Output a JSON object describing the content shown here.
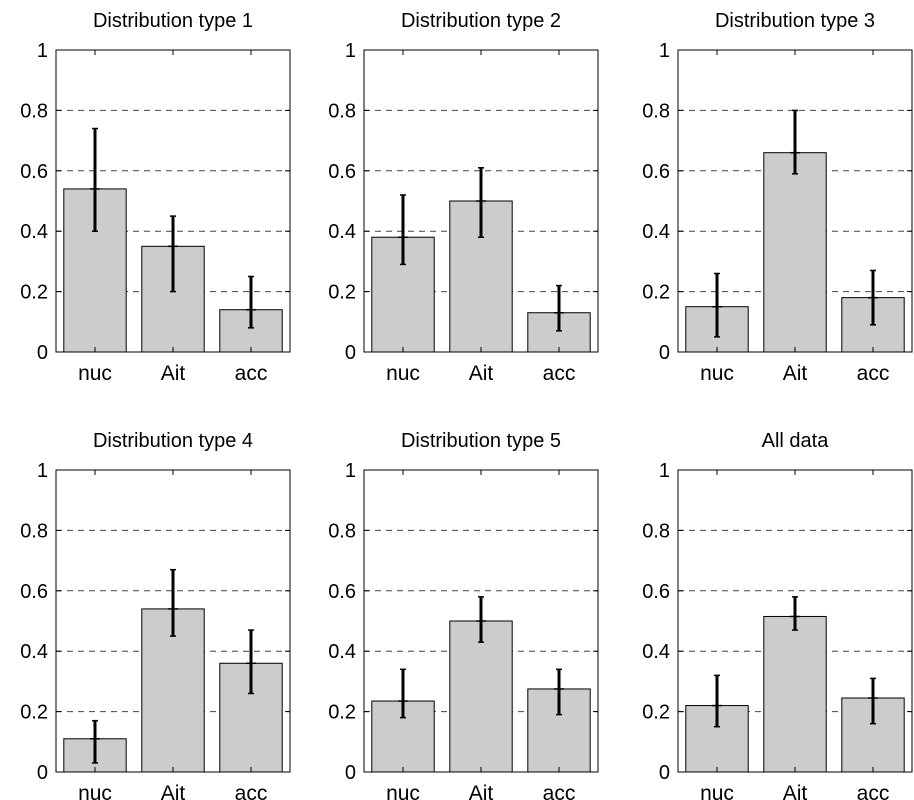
{
  "chart_data": [
    {
      "type": "bar",
      "title": "Distribution type 1",
      "categories": [
        "nuc",
        "Ait",
        "acc"
      ],
      "values": [
        0.54,
        0.35,
        0.14
      ],
      "error_low": [
        0.4,
        0.2,
        0.08
      ],
      "error_high": [
        0.74,
        0.45,
        0.25
      ],
      "ylim": [
        0,
        1
      ],
      "yticks": [
        "0",
        "0.2",
        "0.4",
        "0.6",
        "0.8",
        "1"
      ],
      "grid": "horizontal dashed"
    },
    {
      "type": "bar",
      "title": "Distribution type 2",
      "categories": [
        "nuc",
        "Ait",
        "acc"
      ],
      "values": [
        0.38,
        0.5,
        0.13
      ],
      "error_low": [
        0.29,
        0.38,
        0.07
      ],
      "error_high": [
        0.52,
        0.61,
        0.22
      ],
      "ylim": [
        0,
        1
      ],
      "yticks": [
        "0",
        "0.2",
        "0.4",
        "0.6",
        "0.8",
        "1"
      ],
      "grid": "horizontal dashed"
    },
    {
      "type": "bar",
      "title": "Distribution type 3",
      "categories": [
        "nuc",
        "Ait",
        "acc"
      ],
      "values": [
        0.15,
        0.66,
        0.18
      ],
      "error_low": [
        0.05,
        0.59,
        0.09
      ],
      "error_high": [
        0.26,
        0.8,
        0.27
      ],
      "ylim": [
        0,
        1
      ],
      "yticks": [
        "0",
        "0.2",
        "0.4",
        "0.6",
        "0.8",
        "1"
      ],
      "grid": "horizontal dashed"
    },
    {
      "type": "bar",
      "title": "Distribution type 4",
      "categories": [
        "nuc",
        "Ait",
        "acc"
      ],
      "values": [
        0.11,
        0.54,
        0.36
      ],
      "error_low": [
        0.03,
        0.45,
        0.26
      ],
      "error_high": [
        0.17,
        0.67,
        0.47
      ],
      "ylim": [
        0,
        1
      ],
      "yticks": [
        "0",
        "0.2",
        "0.4",
        "0.6",
        "0.8",
        "1"
      ],
      "grid": "horizontal dashed"
    },
    {
      "type": "bar",
      "title": "Distribution type 5",
      "categories": [
        "nuc",
        "Ait",
        "acc"
      ],
      "values": [
        0.235,
        0.5,
        0.275
      ],
      "error_low": [
        0.18,
        0.43,
        0.19
      ],
      "error_high": [
        0.34,
        0.58,
        0.34
      ],
      "ylim": [
        0,
        1
      ],
      "yticks": [
        "0",
        "0.2",
        "0.4",
        "0.6",
        "0.8",
        "1"
      ],
      "grid": "horizontal dashed"
    },
    {
      "type": "bar",
      "title": "All data",
      "categories": [
        "nuc",
        "Ait",
        "acc"
      ],
      "values": [
        0.22,
        0.515,
        0.245
      ],
      "error_low": [
        0.15,
        0.47,
        0.16
      ],
      "error_high": [
        0.32,
        0.58,
        0.31
      ],
      "ylim": [
        0,
        1
      ],
      "yticks": [
        "0",
        "0.2",
        "0.4",
        "0.6",
        "0.8",
        "1"
      ],
      "grid": "horizontal dashed"
    }
  ],
  "colors": {
    "bar_fill": "#cccccc",
    "bar_edge": "#000000",
    "error_bar": "#000000",
    "grid": "#444444",
    "axes": "#000000"
  }
}
